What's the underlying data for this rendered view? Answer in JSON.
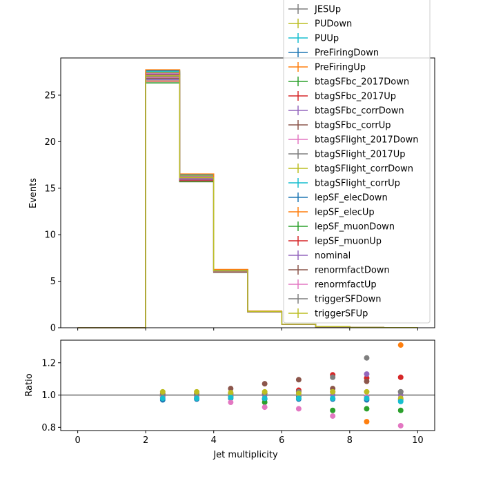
{
  "chart_data": [
    {
      "type": "line",
      "panel": "main",
      "drawstyle": "steps",
      "xlim": [
        -0.5,
        10.5
      ],
      "ylim": [
        0,
        29
      ],
      "ylabel": "Events",
      "y_ticks": [
        0,
        5,
        10,
        15,
        20,
        25
      ],
      "bin_edges": [
        0,
        1,
        2,
        3,
        4,
        5,
        6,
        7,
        8,
        9,
        10
      ],
      "nominal_values": [
        0,
        0,
        27.0,
        16.1,
        6.1,
        1.75,
        0.38,
        0.12,
        0.04,
        0.015
      ],
      "step_variations": [
        -0.025,
        -0.018,
        -0.012,
        -0.007,
        -0.003,
        0.0,
        0.003,
        0.006,
        0.009,
        0.012,
        0.015,
        0.018,
        0.021,
        0.024,
        0.027
      ],
      "legend": {
        "placement": "top-right",
        "entries": [
          {
            "name": "JESUp",
            "color": "#7f7f7f"
          },
          {
            "name": "PUDown",
            "color": "#bcbd22"
          },
          {
            "name": "PUUp",
            "color": "#17becf"
          },
          {
            "name": "PreFiringDown",
            "color": "#1f77b4"
          },
          {
            "name": "PreFiringUp",
            "color": "#ff7f0e"
          },
          {
            "name": "btagSFbc_2017Down",
            "color": "#2ca02c"
          },
          {
            "name": "btagSFbc_2017Up",
            "color": "#d62728"
          },
          {
            "name": "btagSFbc_corrDown",
            "color": "#9467bd"
          },
          {
            "name": "btagSFbc_corrUp",
            "color": "#8c564b"
          },
          {
            "name": "btagSFlight_2017Down",
            "color": "#e377c2"
          },
          {
            "name": "btagSFlight_2017Up",
            "color": "#7f7f7f"
          },
          {
            "name": "btagSFlight_corrDown",
            "color": "#bcbd22"
          },
          {
            "name": "btagSFlight_corrUp",
            "color": "#17becf"
          },
          {
            "name": "lepSF_elecDown",
            "color": "#1f77b4"
          },
          {
            "name": "lepSF_elecUp",
            "color": "#ff7f0e"
          },
          {
            "name": "lepSF_muonDown",
            "color": "#2ca02c"
          },
          {
            "name": "lepSF_muonUp",
            "color": "#d62728"
          },
          {
            "name": "nominal",
            "color": "#9467bd"
          },
          {
            "name": "renormfactDown",
            "color": "#8c564b"
          },
          {
            "name": "renormfactUp",
            "color": "#e377c2"
          },
          {
            "name": "triggerSFDown",
            "color": "#7f7f7f"
          },
          {
            "name": "triggerSFUp",
            "color": "#bcbd22"
          }
        ]
      }
    },
    {
      "type": "scatter",
      "panel": "ratio",
      "xlim": [
        -0.5,
        10.5
      ],
      "ylim": [
        0.78,
        1.34
      ],
      "xlabel": "Jet multiplicity",
      "ylabel": "Ratio",
      "x_ticks": [
        0,
        2,
        4,
        6,
        8,
        10
      ],
      "y_ticks": [
        0.8,
        1.0,
        1.2
      ],
      "reference_line": 1.0,
      "series": [
        {
          "color": "#1f77b4",
          "points": [
            [
              2.5,
              0.97
            ],
            [
              3.5,
              0.975
            ],
            [
              4.5,
              0.98
            ],
            [
              5.5,
              0.975
            ],
            [
              6.5,
              0.975
            ],
            [
              7.5,
              0.975
            ],
            [
              8.5,
              0.97
            ],
            [
              9.5,
              0.97
            ]
          ]
        },
        {
          "color": "#ff7f0e",
          "points": [
            [
              2.5,
              1.01
            ],
            [
              3.5,
              1.01
            ],
            [
              4.5,
              1.01
            ],
            [
              5.5,
              1.01
            ],
            [
              6.5,
              1.02
            ],
            [
              7.5,
              1.02
            ],
            [
              8.5,
              0.835
            ],
            [
              9.5,
              1.31
            ]
          ]
        },
        {
          "color": "#2ca02c",
          "points": [
            [
              2.5,
              0.99
            ],
            [
              3.5,
              0.99
            ],
            [
              4.5,
              0.99
            ],
            [
              5.5,
              0.955
            ],
            [
              6.5,
              0.99
            ],
            [
              7.5,
              0.905
            ],
            [
              8.5,
              0.915
            ],
            [
              9.5,
              0.905
            ]
          ]
        },
        {
          "color": "#d62728",
          "points": [
            [
              2.5,
              1.0
            ],
            [
              3.5,
              1.0
            ],
            [
              4.5,
              1.0
            ],
            [
              5.5,
              1.0
            ],
            [
              6.5,
              1.03
            ],
            [
              7.5,
              1.125
            ],
            [
              8.5,
              1.105
            ],
            [
              9.5,
              1.11
            ]
          ]
        },
        {
          "color": "#9467bd",
          "points": [
            [
              2.5,
              1.0
            ],
            [
              3.5,
              1.0
            ],
            [
              4.5,
              1.0
            ],
            [
              5.5,
              1.0
            ],
            [
              6.5,
              1.0
            ],
            [
              7.5,
              1.0
            ],
            [
              8.5,
              1.13
            ],
            [
              9.5,
              1.0
            ]
          ]
        },
        {
          "color": "#8c564b",
          "points": [
            [
              2.5,
              0.995
            ],
            [
              3.5,
              1.0
            ],
            [
              4.5,
              1.04
            ],
            [
              5.5,
              1.07
            ],
            [
              6.5,
              1.095
            ],
            [
              7.5,
              1.04
            ],
            [
              8.5,
              1.085
            ],
            [
              9.5,
              1.02
            ]
          ]
        },
        {
          "color": "#e377c2",
          "points": [
            [
              2.5,
              0.99
            ],
            [
              3.5,
              0.99
            ],
            [
              4.5,
              0.955
            ],
            [
              5.5,
              0.925
            ],
            [
              6.5,
              0.915
            ],
            [
              7.5,
              0.87
            ],
            [
              8.5,
              0.99
            ],
            [
              9.5,
              0.81
            ]
          ]
        },
        {
          "color": "#7f7f7f",
          "points": [
            [
              2.5,
              1.005
            ],
            [
              3.5,
              1.005
            ],
            [
              4.5,
              1.01
            ],
            [
              5.5,
              1.01
            ],
            [
              6.5,
              1.02
            ],
            [
              7.5,
              1.11
            ],
            [
              8.5,
              1.23
            ],
            [
              9.5,
              1.02
            ]
          ]
        },
        {
          "color": "#bcbd22",
          "points": [
            [
              2.5,
              1.02
            ],
            [
              3.5,
              1.02
            ],
            [
              4.5,
              1.015
            ],
            [
              5.5,
              1.02
            ],
            [
              6.5,
              1.01
            ],
            [
              7.5,
              1.02
            ],
            [
              8.5,
              1.02
            ],
            [
              9.5,
              0.98
            ]
          ]
        },
        {
          "color": "#17becf",
          "points": [
            [
              2.5,
              0.98
            ],
            [
              3.5,
              0.98
            ],
            [
              4.5,
              0.985
            ],
            [
              5.5,
              0.98
            ],
            [
              6.5,
              0.98
            ],
            [
              7.5,
              0.98
            ],
            [
              8.5,
              0.98
            ],
            [
              9.5,
              0.96
            ]
          ]
        }
      ]
    }
  ]
}
